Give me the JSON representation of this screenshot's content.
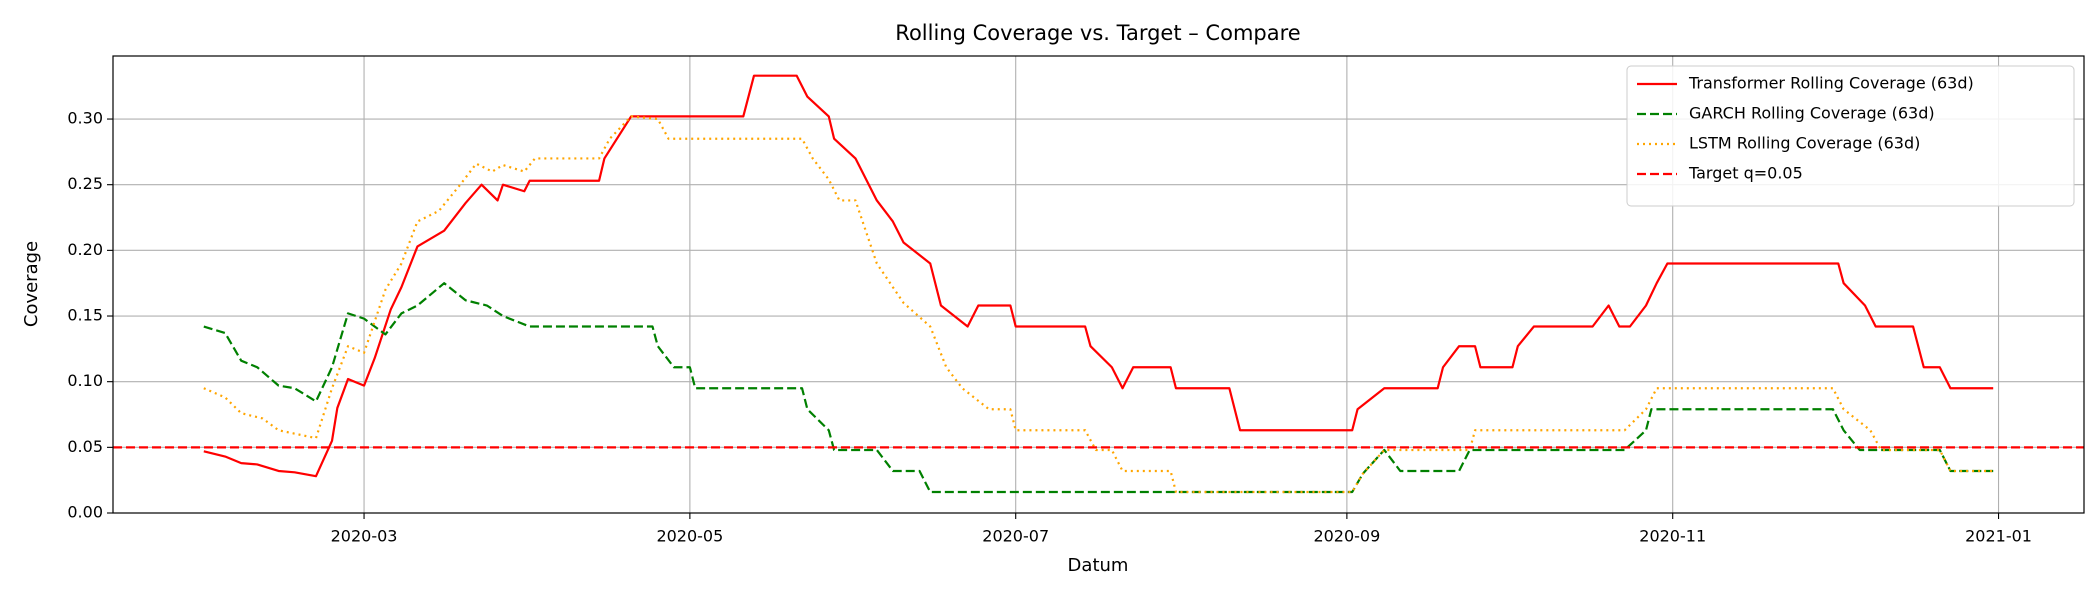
{
  "chart_data": {
    "type": "line",
    "title": "Rolling Coverage vs. Target – Compare",
    "xlabel": "Datum",
    "ylabel": "Coverage",
    "xlim": [
      "2020-01-14",
      "2021-01-17"
    ],
    "xticks": [
      {
        "value": "2020-03-01",
        "label": "2020-03"
      },
      {
        "value": "2020-05-01",
        "label": "2020-05"
      },
      {
        "value": "2020-07-01",
        "label": "2020-07"
      },
      {
        "value": "2020-09-01",
        "label": "2020-09"
      },
      {
        "value": "2020-11-01",
        "label": "2020-11"
      },
      {
        "value": "2021-01-01",
        "label": "2021-01"
      }
    ],
    "ylim": [
      0,
      0.348
    ],
    "yticks": [
      {
        "value": 0,
        "label": "0.00"
      },
      {
        "value": 0.05,
        "label": "0.05"
      },
      {
        "value": 0.1,
        "label": "0.10"
      },
      {
        "value": 0.15,
        "label": "0.15"
      },
      {
        "value": 0.2,
        "label": "0.20"
      },
      {
        "value": 0.25,
        "label": "0.25"
      },
      {
        "value": 0.3,
        "label": "0.30"
      }
    ],
    "grid": true,
    "legend": "upper right",
    "series": [
      {
        "name": "Transformer Rolling Coverage (63d)",
        "color": "#ff0000",
        "style": "solid",
        "x": [
          "2020-01-31",
          "2020-02-04",
          "2020-02-07",
          "2020-02-10",
          "2020-02-14",
          "2020-02-17",
          "2020-02-21",
          "2020-02-24",
          "2020-02-25",
          "2020-02-27",
          "2020-03-01",
          "2020-03-03",
          "2020-03-06",
          "2020-03-08",
          "2020-03-11",
          "2020-03-16",
          "2020-03-20",
          "2020-03-23",
          "2020-03-26",
          "2020-03-27",
          "2020-03-31",
          "2020-04-01",
          "2020-04-14",
          "2020-04-15",
          "2020-04-20",
          "2020-05-11",
          "2020-05-13",
          "2020-05-21",
          "2020-05-23",
          "2020-05-27",
          "2020-05-28",
          "2020-06-01",
          "2020-06-05",
          "2020-06-08",
          "2020-06-10",
          "2020-06-15",
          "2020-06-17",
          "2020-06-22",
          "2020-06-24",
          "2020-06-30",
          "2020-07-01",
          "2020-07-14",
          "2020-07-15",
          "2020-07-19",
          "2020-07-21",
          "2020-07-23",
          "2020-07-30",
          "2020-07-31",
          "2020-08-10",
          "2020-08-12",
          "2020-09-02",
          "2020-09-03",
          "2020-09-08",
          "2020-09-18",
          "2020-09-19",
          "2020-09-22",
          "2020-09-25",
          "2020-09-26",
          "2020-10-02",
          "2020-10-03",
          "2020-10-06",
          "2020-10-17",
          "2020-10-20",
          "2020-10-22",
          "2020-10-24",
          "2020-10-27",
          "2020-10-29",
          "2020-10-31",
          "2020-12-02",
          "2020-12-03",
          "2020-12-07",
          "2020-12-09",
          "2020-12-16",
          "2020-12-18",
          "2020-12-21",
          "2020-12-23",
          "2020-12-31"
        ],
        "values": [
          0.047,
          0.043,
          0.038,
          0.037,
          0.032,
          0.031,
          0.028,
          0.055,
          0.08,
          0.102,
          0.097,
          0.118,
          0.155,
          0.172,
          0.203,
          0.215,
          0.236,
          0.25,
          0.238,
          0.25,
          0.245,
          0.253,
          0.253,
          0.27,
          0.302,
          0.302,
          0.333,
          0.333,
          0.317,
          0.302,
          0.285,
          0.27,
          0.238,
          0.222,
          0.206,
          0.19,
          0.158,
          0.142,
          0.158,
          0.158,
          0.142,
          0.142,
          0.127,
          0.111,
          0.095,
          0.111,
          0.111,
          0.095,
          0.095,
          0.063,
          0.063,
          0.079,
          0.095,
          0.095,
          0.111,
          0.127,
          0.127,
          0.111,
          0.111,
          0.127,
          0.142,
          0.142,
          0.158,
          0.142,
          0.142,
          0.158,
          0.175,
          0.19,
          0.19,
          0.175,
          0.158,
          0.142,
          0.142,
          0.111,
          0.111,
          0.095,
          0.095
        ]
      },
      {
        "name": "GARCH Rolling Coverage (63d)",
        "color": "#008000",
        "style": "dashed",
        "x": [
          "2020-01-31",
          "2020-02-04",
          "2020-02-07",
          "2020-02-10",
          "2020-02-14",
          "2020-02-17",
          "2020-02-21",
          "2020-02-24",
          "2020-02-27",
          "2020-03-01",
          "2020-03-05",
          "2020-03-08",
          "2020-03-11",
          "2020-03-16",
          "2020-03-20",
          "2020-03-24",
          "2020-03-27",
          "2020-04-01",
          "2020-04-24",
          "2020-04-25",
          "2020-04-28",
          "2020-05-01",
          "2020-05-02",
          "2020-05-22",
          "2020-05-23",
          "2020-05-27",
          "2020-05-28",
          "2020-06-05",
          "2020-06-08",
          "2020-06-13",
          "2020-06-15",
          "2020-09-02",
          "2020-09-04",
          "2020-09-08",
          "2020-09-11",
          "2020-09-22",
          "2020-09-24",
          "2020-10-23",
          "2020-10-27",
          "2020-10-28",
          "2020-12-01",
          "2020-12-03",
          "2020-12-06",
          "2020-12-21",
          "2020-12-23",
          "2020-12-31"
        ],
        "values": [
          0.142,
          0.137,
          0.116,
          0.111,
          0.097,
          0.095,
          0.085,
          0.111,
          0.152,
          0.148,
          0.136,
          0.152,
          0.158,
          0.175,
          0.162,
          0.158,
          0.15,
          0.142,
          0.142,
          0.127,
          0.111,
          0.111,
          0.095,
          0.095,
          0.079,
          0.063,
          0.048,
          0.048,
          0.032,
          0.032,
          0.016,
          0.016,
          0.03,
          0.048,
          0.032,
          0.032,
          0.048,
          0.048,
          0.063,
          0.079,
          0.079,
          0.063,
          0.048,
          0.048,
          0.032,
          0.032
        ]
      },
      {
        "name": "LSTM Rolling Coverage (63d)",
        "color": "#ffa500",
        "style": "dotted",
        "x": [
          "2020-01-31",
          "2020-02-04",
          "2020-02-07",
          "2020-02-11",
          "2020-02-14",
          "2020-02-21",
          "2020-02-24",
          "2020-02-27",
          "2020-03-01",
          "2020-03-05",
          "2020-03-08",
          "2020-03-11",
          "2020-03-15",
          "2020-03-19",
          "2020-03-22",
          "2020-03-25",
          "2020-03-27",
          "2020-03-31",
          "2020-04-02",
          "2020-04-14",
          "2020-04-16",
          "2020-04-20",
          "2020-04-25",
          "2020-04-27",
          "2020-05-22",
          "2020-05-24",
          "2020-05-27",
          "2020-05-29",
          "2020-06-01",
          "2020-06-05",
          "2020-06-10",
          "2020-06-15",
          "2020-06-18",
          "2020-06-21",
          "2020-06-26",
          "2020-06-30",
          "2020-07-01",
          "2020-07-14",
          "2020-07-16",
          "2020-07-19",
          "2020-07-21",
          "2020-07-30",
          "2020-07-31",
          "2020-09-02",
          "2020-09-04",
          "2020-09-08",
          "2020-09-24",
          "2020-09-25",
          "2020-10-23",
          "2020-10-27",
          "2020-10-29",
          "2020-12-01",
          "2020-12-03",
          "2020-12-08",
          "2020-12-10",
          "2020-12-21",
          "2020-12-23",
          "2020-12-31"
        ],
        "values": [
          0.095,
          0.088,
          0.076,
          0.072,
          0.063,
          0.057,
          0.095,
          0.127,
          0.122,
          0.17,
          0.19,
          0.222,
          0.23,
          0.25,
          0.266,
          0.26,
          0.265,
          0.26,
          0.27,
          0.27,
          0.285,
          0.302,
          0.3,
          0.285,
          0.285,
          0.27,
          0.254,
          0.238,
          0.238,
          0.19,
          0.16,
          0.142,
          0.111,
          0.095,
          0.079,
          0.079,
          0.063,
          0.063,
          0.048,
          0.048,
          0.032,
          0.032,
          0.016,
          0.016,
          0.03,
          0.048,
          0.048,
          0.063,
          0.063,
          0.079,
          0.095,
          0.095,
          0.079,
          0.063,
          0.048,
          0.048,
          0.032,
          0.032
        ]
      }
    ],
    "reference_lines": [
      {
        "name": "Target q=0.05",
        "value": 0.05,
        "color": "#ff0000",
        "style": "dashed"
      }
    ]
  }
}
